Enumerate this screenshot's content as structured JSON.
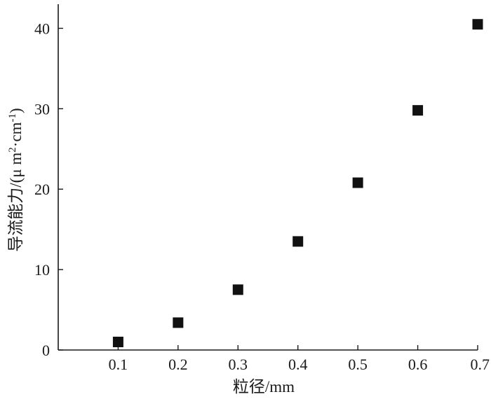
{
  "chart_data": {
    "type": "scatter",
    "title": "",
    "xlabel": "粒径/mm",
    "ylabel": {
      "main": "导流能力/(μ m",
      "sup1": "2",
      "mid": "·cm",
      "sup2": "-1",
      "end": ")"
    },
    "xlim": [
      0,
      0.7
    ],
    "ylim": [
      0,
      43
    ],
    "x_ticks": [
      0.1,
      0.2,
      0.3,
      0.4,
      0.5,
      0.6,
      0.7
    ],
    "x_tick_labels": [
      "0.1",
      "0.2",
      "0.3",
      "0.4",
      "0.5",
      "0.6",
      "0.7"
    ],
    "y_ticks": [
      0,
      10,
      20,
      30,
      40
    ],
    "y_tick_labels": [
      "0",
      "10",
      "20",
      "30",
      "40"
    ],
    "grid": false,
    "marker": "square",
    "marker_color": "#111111",
    "series": [
      {
        "x": [
          0.1,
          0.2,
          0.3,
          0.4,
          0.5,
          0.6,
          0.7
        ],
        "y": [
          1.0,
          3.4,
          7.5,
          13.5,
          20.8,
          29.8,
          40.5
        ]
      }
    ]
  }
}
